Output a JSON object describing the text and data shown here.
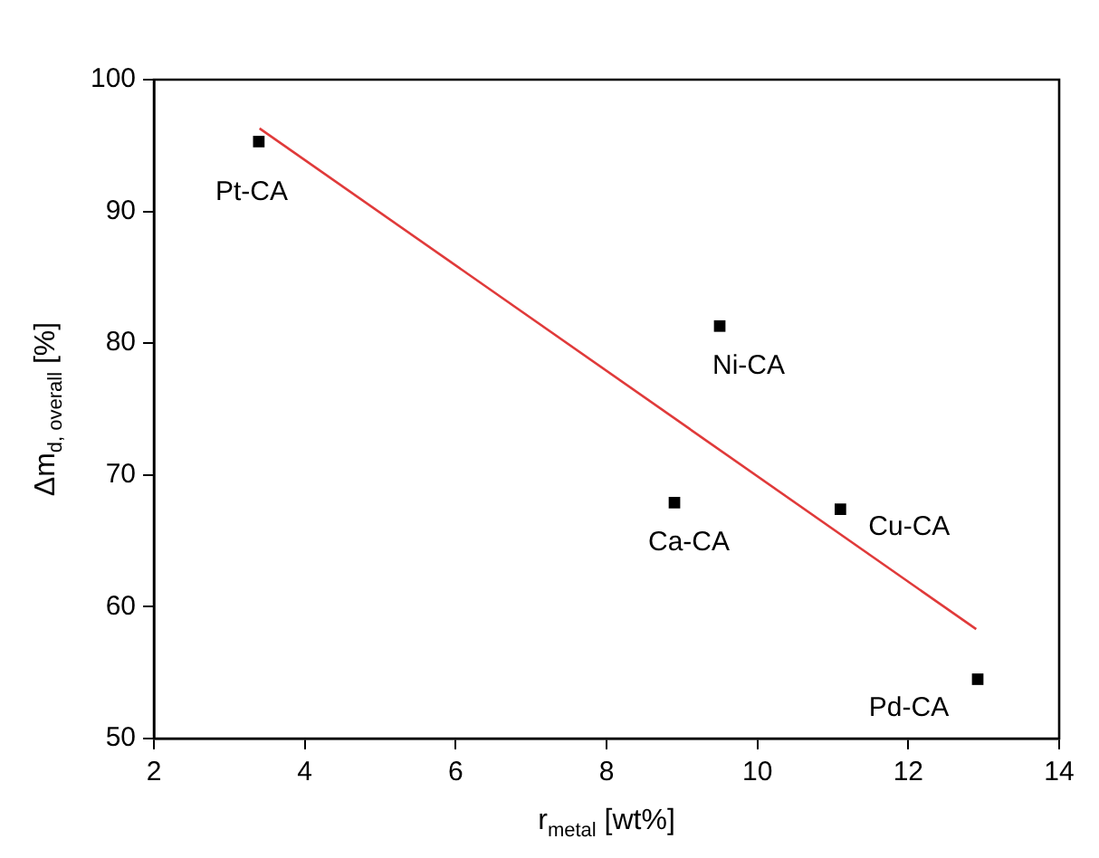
{
  "chart_data": {
    "type": "scatter",
    "xlabel": "r$_{metal}$ [wt%]",
    "ylabel": "Δm$_{d, overall}$ [%]",
    "series": [
      {
        "type": "scatter",
        "color": "#000000",
        "marker": "square",
        "x": [
          3.39,
          8.9,
          9.5,
          11.1,
          12.92
        ],
        "values": [
          95.3,
          67.9,
          81.3,
          67.4,
          54.5
        ]
      },
      {
        "type": "line",
        "color": "#e03a3a",
        "marker": "none",
        "x": [
          3.4,
          12.9
        ],
        "values": [
          96.3,
          58.3
        ]
      }
    ],
    "annotations": [
      {
        "text": "Pt-CA",
        "x": 3.39,
        "y": 95.3
      },
      {
        "text": "Ca-CA",
        "x": 8.9,
        "y": 67.9
      },
      {
        "text": "Ni-CA",
        "x": 9.5,
        "y": 81.3
      },
      {
        "text": "Cu-CA",
        "x": 11.1,
        "y": 67.4
      },
      {
        "text": "Pd-CA",
        "x": 12.92,
        "y": 54.5
      }
    ],
    "xlim": [
      2,
      14
    ],
    "xticks": [
      2,
      4,
      6,
      8,
      10,
      12,
      14
    ],
    "ylim": [
      50,
      100
    ],
    "yticks": [
      50,
      60,
      70,
      80,
      90,
      100
    ],
    "grid": false,
    "legend": false
  }
}
